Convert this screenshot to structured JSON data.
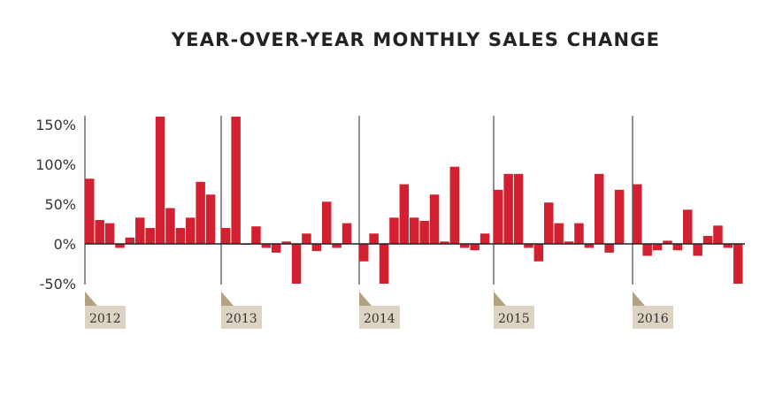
{
  "chart_data": {
    "type": "bar",
    "title": "YEAR-OVER-YEAR MONTHLY SALES CHANGE",
    "xlabel": "",
    "ylabel": "",
    "ylim": [
      -50,
      160
    ],
    "y_ticks": [
      150,
      100,
      50,
      0,
      -50
    ],
    "y_tick_labels": [
      "150%",
      "100%",
      "50%",
      "0%",
      "-50%"
    ],
    "years": [
      "2012",
      "2013",
      "2014",
      "2015",
      "2016"
    ],
    "bars_per_year": 13,
    "colors": {
      "bar": "#d22030",
      "year_label_bg": "#ddd3c2",
      "year_flag": "#b3a27f",
      "axis": "#222222"
    },
    "series": [
      {
        "values": [
          82,
          30,
          26,
          -5,
          8,
          33,
          20,
          160,
          45,
          20,
          33,
          78,
          62,
          20,
          160,
          -1,
          22,
          -5,
          -11,
          3,
          -51,
          13,
          -9,
          53,
          -5,
          26,
          -22,
          13,
          -55,
          33,
          75,
          33,
          29,
          62,
          3,
          97,
          -5,
          -8,
          13,
          68,
          88,
          88,
          -5,
          -22,
          52,
          26,
          3,
          26,
          -5,
          88,
          -11,
          68,
          75,
          -15,
          -8,
          4,
          -8,
          43,
          -15,
          10,
          23,
          -5,
          -54
        ]
      }
    ]
  }
}
